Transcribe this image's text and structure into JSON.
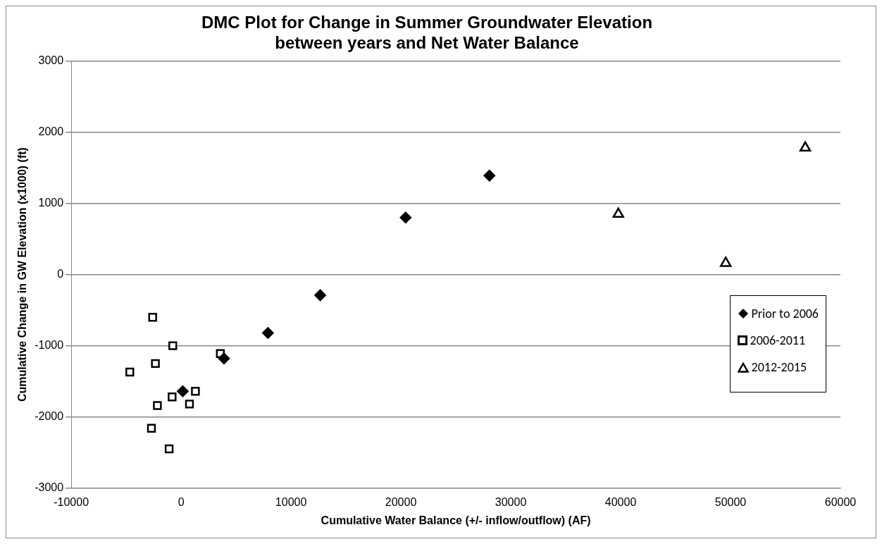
{
  "chart_data": {
    "type": "scatter",
    "title": "DMC Plot for Change in Summer Groundwater Elevation between years and Net Water Balance",
    "xlabel": "Cumulative Water Balance (+/- inflow/outflow) (AF)",
    "ylabel": "Cumulative Change in GW Elevation (x1000) (ft)",
    "series": [
      {
        "name": "Prior to 2006",
        "color": "#000000",
        "marker": "diamond",
        "x": [
          150,
          3900,
          7900,
          12660,
          20430,
          28060
        ],
        "values": [
          -1640,
          -1180,
          -820,
          -290,
          800,
          1390
        ]
      },
      {
        "name": "2006-2011",
        "color": "#000000",
        "marker": "square",
        "x": [
          -2590,
          -760,
          -2340,
          -4670,
          3570,
          -820,
          -2160,
          760,
          1300,
          -2700,
          -1090
        ],
        "values": [
          -600,
          -1000,
          -1250,
          -1370,
          -1110,
          -1720,
          -1840,
          -1820,
          -1640,
          -2160,
          -2450
        ]
      },
      {
        "name": "2012-2015",
        "color": "#000000",
        "marker": "triangle",
        "x": [
          39790,
          49560,
          56800
        ],
        "values": [
          850,
          160,
          1780
        ]
      }
    ],
    "xlim": [
      -10000,
      60000
    ],
    "xticks": [
      -10000,
      0,
      10000,
      20000,
      30000,
      40000,
      50000,
      60000
    ],
    "ylim": [
      -3000,
      3000
    ],
    "yticks": [
      -3000,
      -2000,
      -1000,
      0,
      1000,
      2000,
      3000
    ],
    "grid": "y",
    "legend": "bottom right"
  }
}
